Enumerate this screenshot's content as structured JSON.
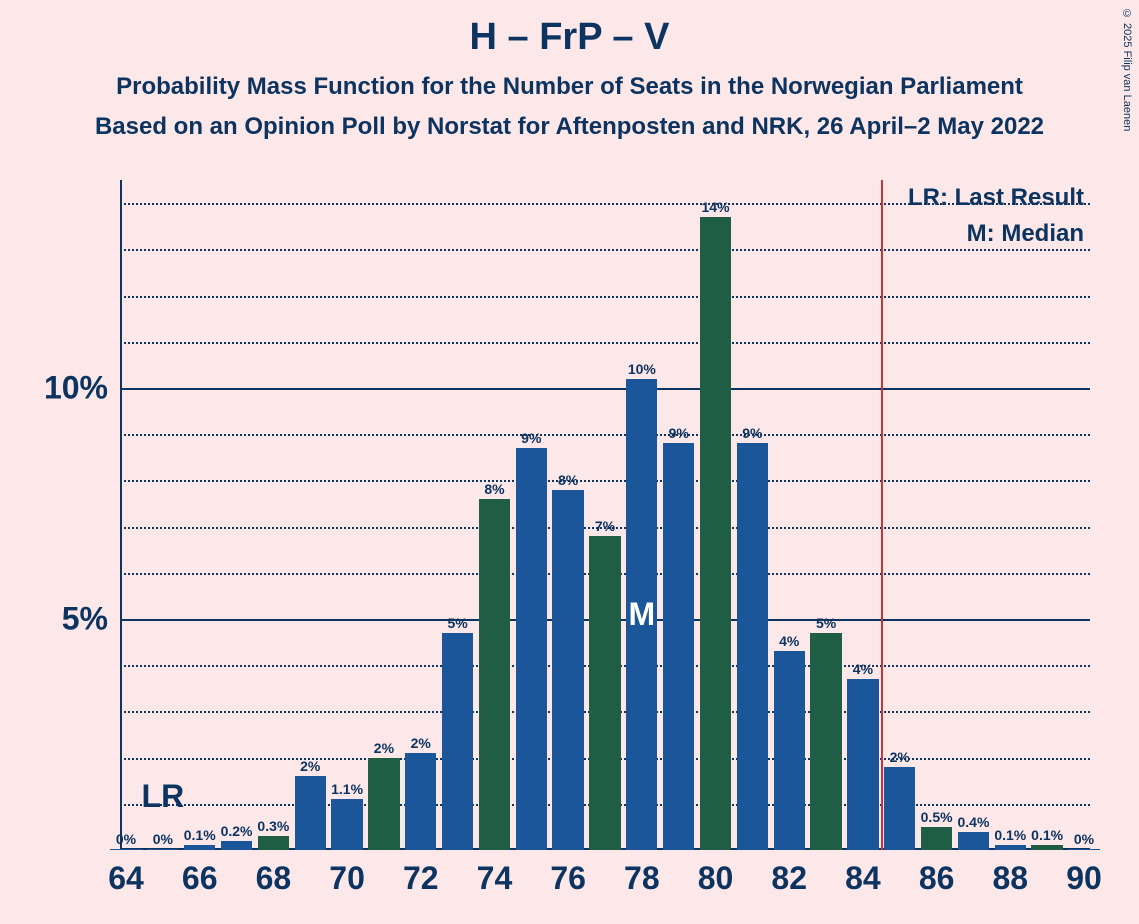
{
  "title": "H – FrP – V",
  "subtitle1": "Probability Mass Function for the Number of Seats in the Norwegian Parliament",
  "subtitle2": "Based on an Opinion Poll by Norstat for Aftenposten and NRK, 26 April–2 May 2022",
  "copyright": "© 2025 Filip van Laenen",
  "legend": {
    "lr": "LR: Last Result",
    "m": "M: Median"
  },
  "chart": {
    "type": "bar",
    "background_color": "#fce8e8",
    "axis_color": "#0d3360",
    "text_color": "#0d3360",
    "grid_color_solid": "#0d3360",
    "grid_color_dotted": "#0d3360",
    "vertical_line_color": "#cc3333",
    "title_fontsize": 38,
    "subtitle_fontsize": 24,
    "ytick_fontsize": 32,
    "xtick_fontsize": 32,
    "barlabel_fontsize": 14,
    "legend_fontsize": 24,
    "marker_fontsize": 32,
    "x_min": 64,
    "x_max": 90,
    "y_min": 0,
    "y_max": 14.5,
    "y_major_ticks": [
      5,
      10
    ],
    "y_major_labels": [
      "5%",
      "10%"
    ],
    "y_minor_ticks": [
      1,
      2,
      3,
      4,
      6,
      7,
      8,
      9,
      11,
      12,
      13,
      14
    ],
    "x_tick_values": [
      64,
      66,
      68,
      70,
      72,
      74,
      76,
      78,
      80,
      82,
      84,
      86,
      88,
      90
    ],
    "bar_width": 0.85,
    "colors": {
      "blue": "#1a5699",
      "green": "#1f5e45"
    },
    "bars": [
      {
        "x": 64,
        "value": 0.02,
        "label": "0%",
        "color": "blue"
      },
      {
        "x": 65,
        "value": 0.03,
        "label": "0%",
        "color": "blue"
      },
      {
        "x": 66,
        "value": 0.1,
        "label": "0.1%",
        "color": "blue"
      },
      {
        "x": 67,
        "value": 0.2,
        "label": "0.2%",
        "color": "blue"
      },
      {
        "x": 68,
        "value": 0.3,
        "label": "0.3%",
        "color": "green"
      },
      {
        "x": 69,
        "value": 1.6,
        "label": "2%",
        "color": "blue"
      },
      {
        "x": 70,
        "value": 1.1,
        "label": "1.1%",
        "color": "blue"
      },
      {
        "x": 71,
        "value": 2.0,
        "label": "2%",
        "color": "green"
      },
      {
        "x": 72,
        "value": 2.1,
        "label": "2%",
        "color": "blue"
      },
      {
        "x": 73,
        "value": 4.7,
        "label": "5%",
        "color": "blue"
      },
      {
        "x": 74,
        "value": 7.6,
        "label": "8%",
        "color": "green"
      },
      {
        "x": 75,
        "value": 8.7,
        "label": "9%",
        "color": "blue"
      },
      {
        "x": 76,
        "value": 7.8,
        "label": "8%",
        "color": "blue"
      },
      {
        "x": 77,
        "value": 6.8,
        "label": "7%",
        "color": "green"
      },
      {
        "x": 78,
        "value": 10.2,
        "label": "10%",
        "color": "blue"
      },
      {
        "x": 79,
        "value": 8.8,
        "label": "9%",
        "color": "blue"
      },
      {
        "x": 80,
        "value": 13.7,
        "label": "14%",
        "color": "green"
      },
      {
        "x": 81,
        "value": 8.8,
        "label": "9%",
        "color": "blue"
      },
      {
        "x": 82,
        "value": 4.3,
        "label": "4%",
        "color": "blue"
      },
      {
        "x": 83,
        "value": 4.7,
        "label": "5%",
        "color": "green"
      },
      {
        "x": 84,
        "value": 3.7,
        "label": "4%",
        "color": "blue"
      },
      {
        "x": 85,
        "value": 1.8,
        "label": "2%",
        "color": "blue"
      },
      {
        "x": 86,
        "value": 0.5,
        "label": "0.5%",
        "color": "green"
      },
      {
        "x": 87,
        "value": 0.4,
        "label": "0.4%",
        "color": "blue"
      },
      {
        "x": 88,
        "value": 0.1,
        "label": "0.1%",
        "color": "blue"
      },
      {
        "x": 89,
        "value": 0.1,
        "label": "0.1%",
        "color": "green"
      },
      {
        "x": 90,
        "value": 0.02,
        "label": "0%",
        "color": "blue"
      }
    ],
    "vertical_line_x": 84.5,
    "lr_marker": {
      "x": 65,
      "text": "LR"
    },
    "median_marker": {
      "x": 78,
      "text": "M"
    }
  }
}
